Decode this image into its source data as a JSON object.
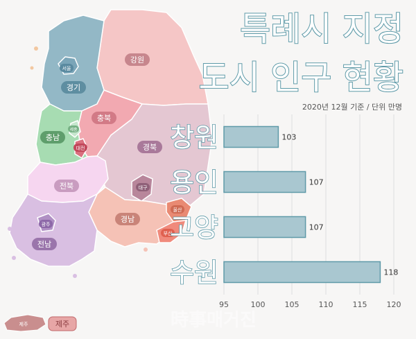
{
  "chart_data": {
    "type": "bar",
    "orientation": "horizontal",
    "title": "특례시 지정\n도시 인구 현황",
    "subtitle": "2020년 12월 기준 / 단위 만명",
    "categories": [
      "창원",
      "용인",
      "고양",
      "수원"
    ],
    "values": [
      103,
      107,
      107,
      118
    ],
    "xlim": [
      95,
      120
    ],
    "xticks": [
      95,
      100,
      105,
      110,
      115,
      120
    ],
    "grid": true,
    "bar_color": "#a9c7d0",
    "bar_stroke": "#5f9aa8"
  },
  "map": {
    "regions": [
      {
        "key": "seoul",
        "label": "서울"
      },
      {
        "key": "gyeonggi",
        "label": "경기"
      },
      {
        "key": "gangwon",
        "label": "강원"
      },
      {
        "key": "chungbuk",
        "label": "충북"
      },
      {
        "key": "chungnam",
        "label": "충남"
      },
      {
        "key": "sejong",
        "label": "세종"
      },
      {
        "key": "daejeon",
        "label": "대전"
      },
      {
        "key": "gyeongbuk",
        "label": "경북"
      },
      {
        "key": "daegu",
        "label": "대구"
      },
      {
        "key": "jeonbuk",
        "label": "전북"
      },
      {
        "key": "gyeongnam",
        "label": "경남"
      },
      {
        "key": "ulsan",
        "label": "울산"
      },
      {
        "key": "busan",
        "label": "부산"
      },
      {
        "key": "gwangju",
        "label": "광주"
      },
      {
        "key": "jeonnam",
        "label": "전남"
      },
      {
        "key": "jeju_island",
        "label": "제주"
      },
      {
        "key": "jeju",
        "label": "제주"
      }
    ],
    "colors": {
      "gyeonggi": "#93b8c6",
      "seoul": "#7aa5b8",
      "gangwon": "#f5c6c6",
      "chungbuk": "#f2a9b1",
      "chungnam": "#a7dcb2",
      "sejong": "#c5e6cd",
      "daejeon": "#d9707e",
      "gyeongbuk": "#e4c7d2",
      "daegu": "#b8869b",
      "jeonbuk": "#f6d6f0",
      "gyeongnam": "#f5c2b6",
      "ulsan": "#e98a73",
      "busan": "#f08a7c",
      "gwangju": "#b090c4",
      "jeonnam": "#d9bfe2",
      "jeju": "#c98e8e"
    },
    "label_colors": {
      "gyeonggi": "#5e8ea1",
      "seoul": "#5a8aa0",
      "gangwon": "#c7868d",
      "chungbuk": "#d27a86",
      "chungnam": "#5f9e6c",
      "sejong": "#76b184",
      "daejeon": "#c2485b",
      "gyeongbuk": "#a9799a",
      "daegu": "#8f6078",
      "jeonbuk": "#c99cc0",
      "gyeongnam": "#c98479",
      "ulsan": "#cf6a53",
      "busan": "#e0604f",
      "gwangju": "#8d68a8",
      "jeonnam": "#9a75ab",
      "jeju": "#c0686b",
      "jeju_island": "#c98e8e"
    }
  },
  "watermark": "時事매거진"
}
